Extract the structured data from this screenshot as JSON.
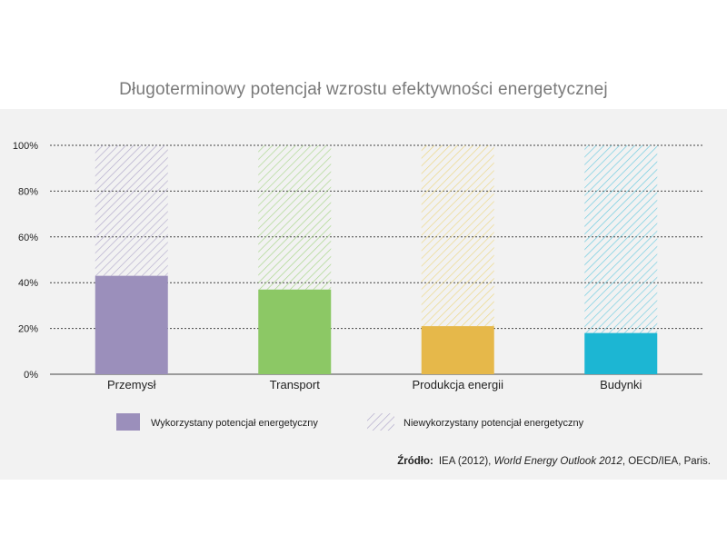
{
  "title": "Długoterminowy potencjał wzrostu efektywności energetycznej",
  "source": {
    "label": "Źródło:",
    "text_before": "IEA (2012),",
    "text_italic": "World Energy Outlook 2012",
    "text_after": ", OECD/IEA, Paris."
  },
  "chart_data": {
    "type": "bar",
    "stacked": true,
    "categories": [
      "Przemysł",
      "Transport",
      "Produkcja energii",
      "Budynki"
    ],
    "series": [
      {
        "name": "Wykorzystany potencjał energetyczny",
        "values": [
          43,
          37,
          21,
          18
        ]
      },
      {
        "name": "Niewykorzystany potencjał energetyczny",
        "values": [
          57,
          63,
          79,
          82
        ]
      }
    ],
    "colors": [
      "#9b8fbb",
      "#8cc865",
      "#e6b84a",
      "#1cb6d3"
    ],
    "hatch_colors": [
      "#b2aacb",
      "#a8d68a",
      "#ecd680",
      "#6ccbe0"
    ],
    "legend_solid_color": "#9b8fbb",
    "legend_hatch_color": "#b2aacb",
    "yticks": [
      "0%",
      "20%",
      "40%",
      "60%",
      "80%",
      "100%"
    ],
    "ylim": [
      0,
      100
    ],
    "grid": true,
    "legend_position": "bottom"
  }
}
